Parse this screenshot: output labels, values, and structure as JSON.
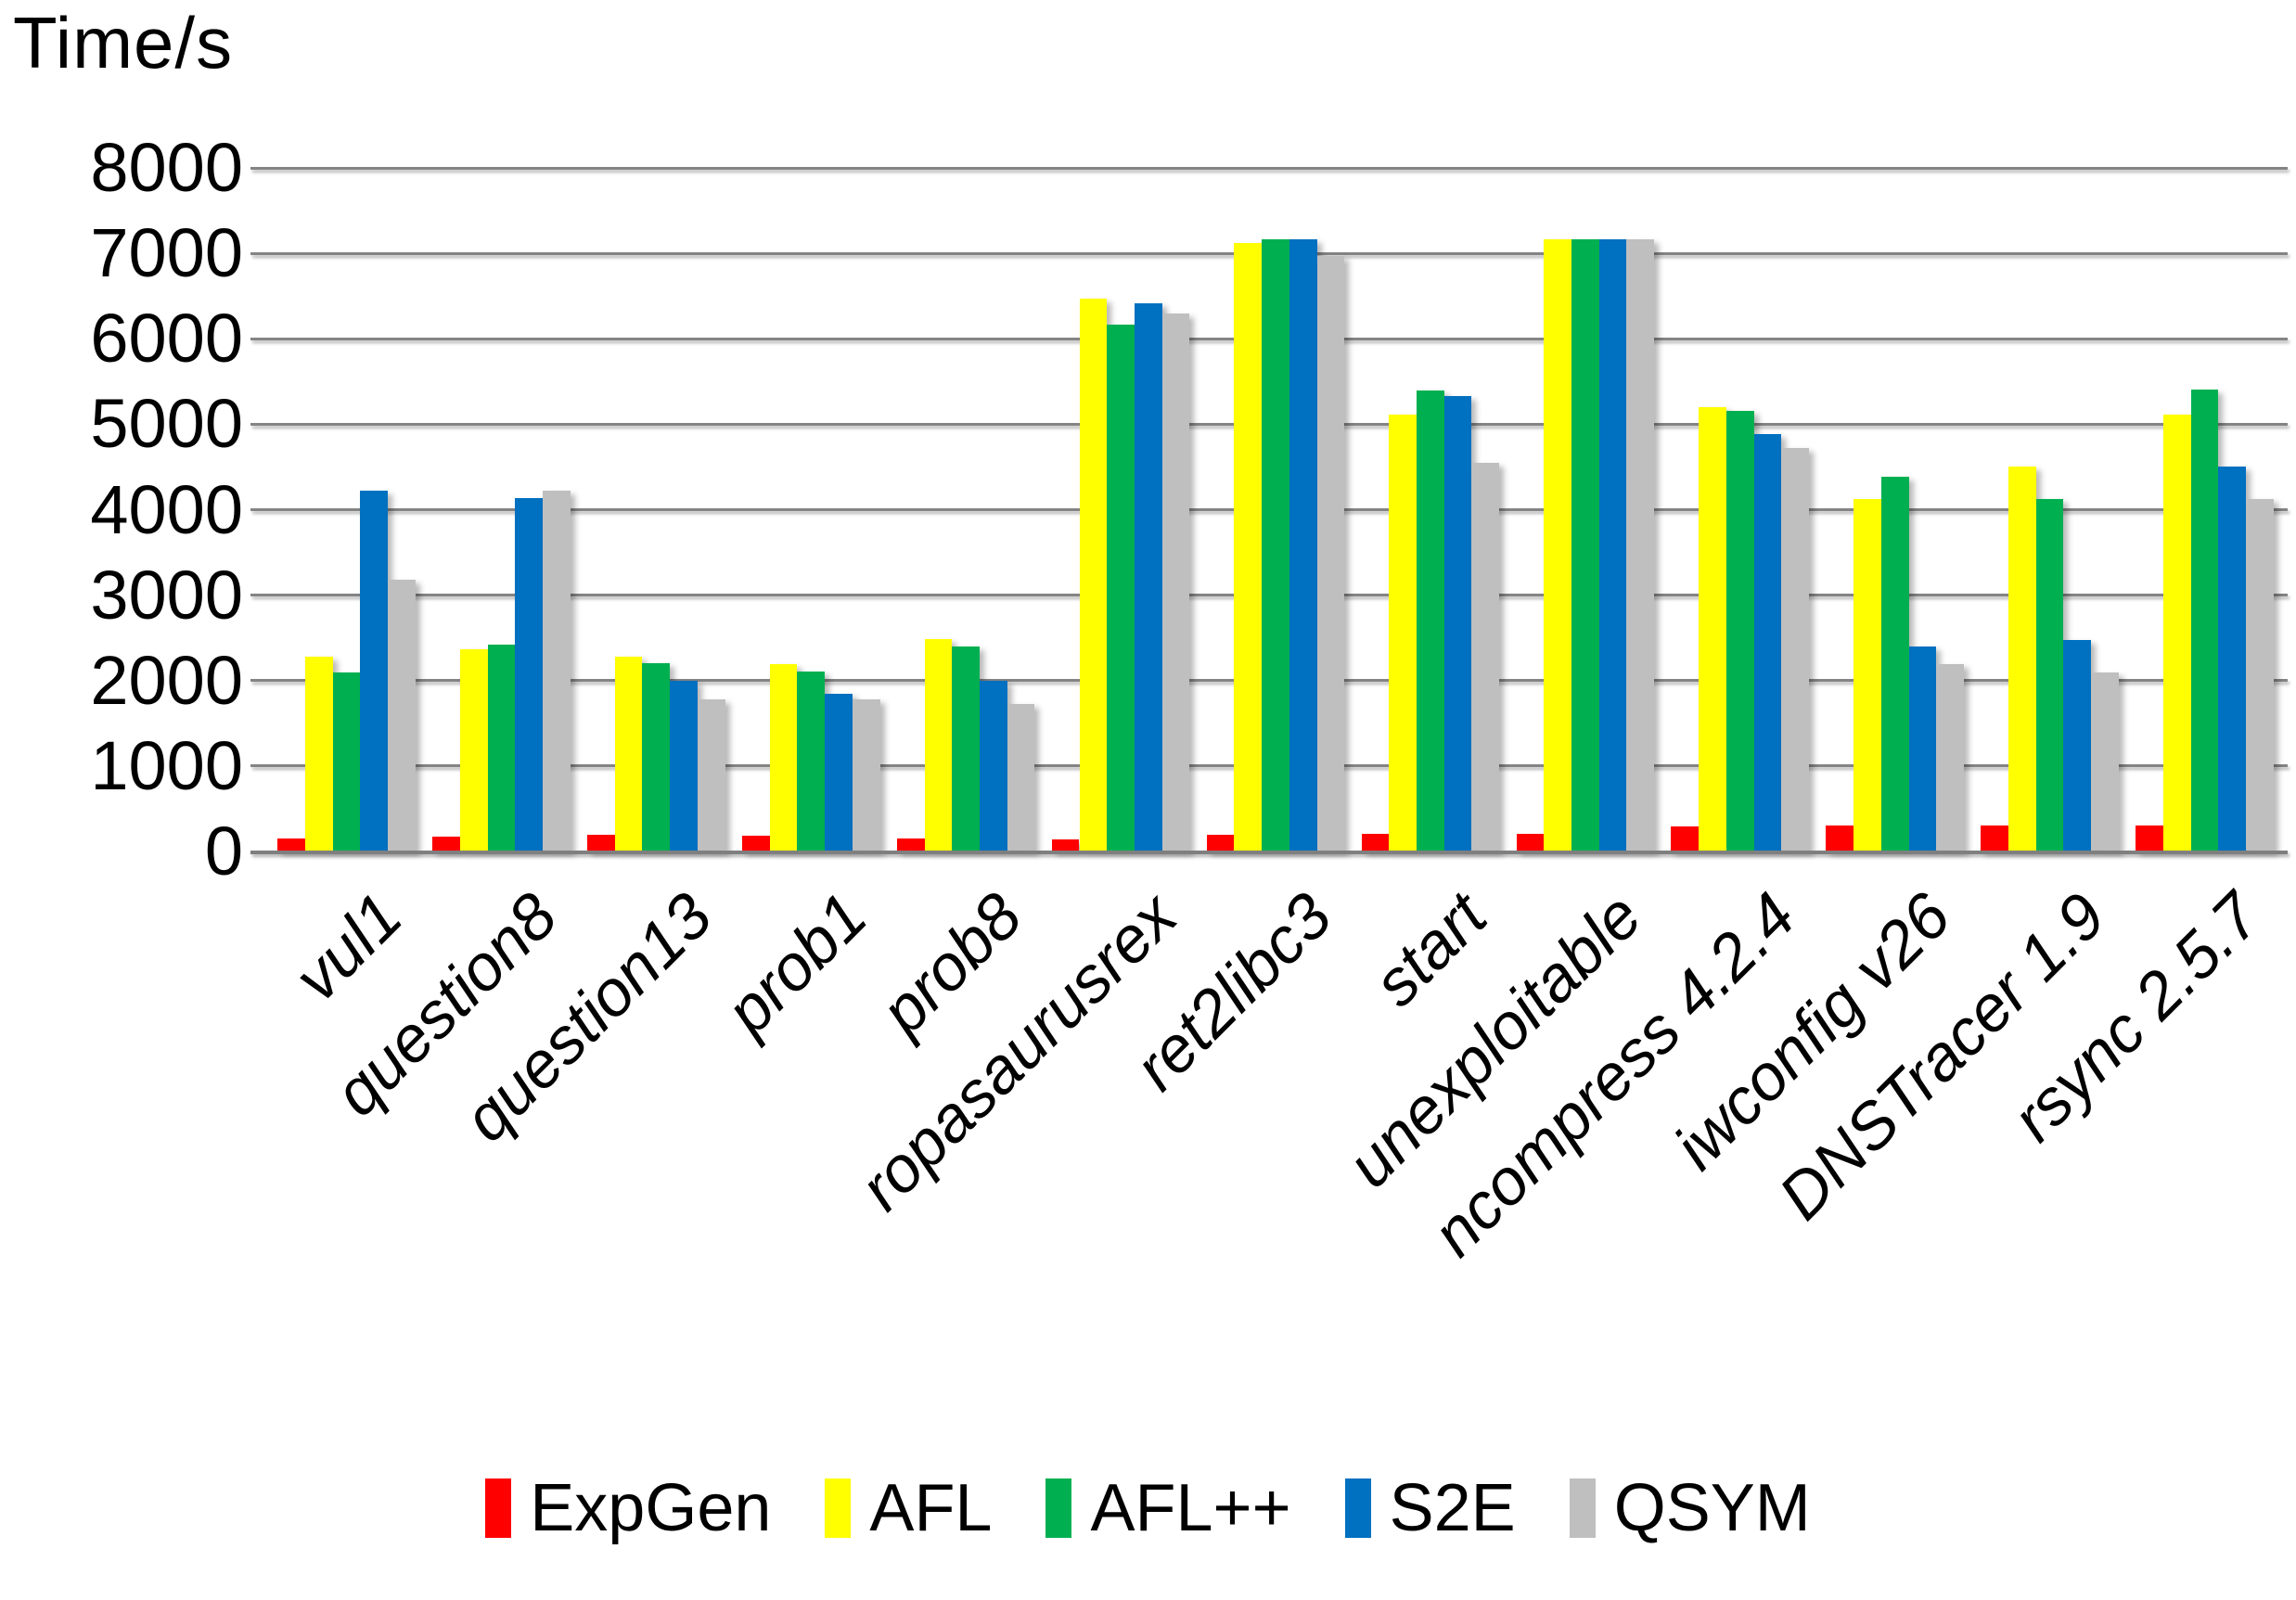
{
  "chart_data": {
    "type": "bar",
    "title": "Time/s",
    "ylabel": "Time/s",
    "xlabel": "",
    "ylim": [
      0,
      8000
    ],
    "yticks": [
      0,
      1000,
      2000,
      3000,
      4000,
      5000,
      6000,
      7000,
      8000
    ],
    "grid": true,
    "legend_position": "bottom",
    "categories": [
      "vul1",
      "question8",
      "question13",
      "prob1",
      "prob8",
      "ropasaurusrex",
      "ret2libc3",
      "start",
      "unexploitable",
      "ncompress 4.2.4",
      "iwconfig v26",
      "DNSTracer 1.9",
      "rsync 2.5.7"
    ],
    "series": [
      {
        "name": "ExpGen",
        "color": "#FF0000",
        "values": [
          150,
          170,
          200,
          180,
          150,
          140,
          190,
          210,
          210,
          290,
          300,
          300,
          300
        ]
      },
      {
        "name": "AFL",
        "color": "#FFFF00",
        "values": [
          2280,
          2370,
          2280,
          2190,
          2490,
          6470,
          7120,
          5110,
          7160,
          5200,
          4130,
          4500,
          5110
        ]
      },
      {
        "name": "AFL++",
        "color": "#00B050",
        "values": [
          2100,
          2420,
          2200,
          2110,
          2400,
          6170,
          7160,
          5400,
          7160,
          5160,
          4380,
          4120,
          5410
        ]
      },
      {
        "name": "S2E",
        "color": "#0070C0",
        "values": [
          4220,
          4140,
          2000,
          1850,
          2000,
          6420,
          7160,
          5330,
          7160,
          4890,
          2400,
          2480,
          4510
        ]
      },
      {
        "name": "QSYM",
        "color": "#BFBFBF",
        "values": [
          3180,
          4220,
          1780,
          1780,
          1730,
          6300,
          6970,
          4550,
          7160,
          4720,
          2190,
          2100,
          4120
        ]
      }
    ]
  }
}
